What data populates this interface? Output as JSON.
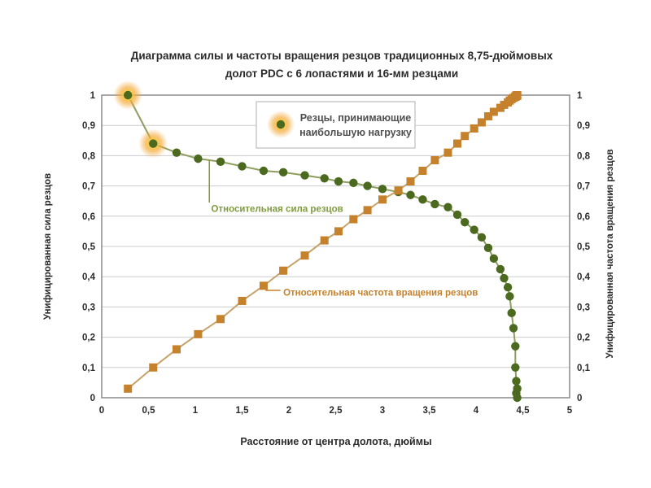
{
  "page": {
    "background": "#ffffff"
  },
  "chart_data": {
    "type": "line",
    "title_lines": [
      "Диаграмма силы и частоты вращения резцов традиционных 8,75-дюймовых",
      "долот PDC с 6 лопастями и 16-мм резцами"
    ],
    "xlabel": "Расстояние от центра долота, дюймы",
    "ylabel_left": "Унифицированная сила резцов",
    "ylabel_right": "Унифицированная частота вращения резцов",
    "xlim": [
      0,
      5
    ],
    "ylim": [
      0,
      1
    ],
    "xtick_values": [
      0,
      0.5,
      1,
      1.5,
      2,
      2.5,
      3,
      3.5,
      4,
      4.5,
      5
    ],
    "xtick_labels": [
      "0",
      "0,5",
      "1",
      "1,5",
      "2",
      "2,5",
      "3",
      "3,5",
      "4",
      "4,5",
      "5"
    ],
    "ytick_values": [
      0,
      0.1,
      0.2,
      0.3,
      0.4,
      0.5,
      0.6,
      0.7,
      0.8,
      0.9,
      1
    ],
    "ytick_labels": [
      "0",
      "0,1",
      "0,2",
      "0,3",
      "0,4",
      "0,5",
      "0,6",
      "0,7",
      "0,8",
      "0,9",
      "1"
    ],
    "grid": "horizontal",
    "grid_color": "#cbcbcb",
    "border_color": "#8a8a8a",
    "legend": {
      "text_lines": [
        "Резцы, принимающие",
        "наибольшую нагрузку"
      ],
      "marker": "highlighted-cutter-dot",
      "position": "top-center-inside",
      "border_color": "#bcbcbc"
    },
    "highlight_glow_color": "#f5a82e",
    "x": [
      0.28,
      0.55,
      0.8,
      1.03,
      1.27,
      1.5,
      1.73,
      1.94,
      2.17,
      2.38,
      2.53,
      2.69,
      2.84,
      3.0,
      3.17,
      3.3,
      3.43,
      3.56,
      3.7,
      3.8,
      3.88,
      3.98,
      4.06,
      4.13,
      4.19,
      4.26,
      4.3,
      4.34,
      4.36,
      4.38,
      4.4,
      4.42,
      4.42,
      4.43,
      4.44,
      4.43,
      4.44
    ],
    "series": [
      {
        "name": "Относительная сила резцов",
        "axis": "left",
        "marker": "circle",
        "marker_color": "#4b6a1f",
        "line_color": "#8e9e60",
        "highlighted_points": [
          0,
          1
        ],
        "values": [
          1.0,
          0.84,
          0.81,
          0.79,
          0.78,
          0.765,
          0.75,
          0.745,
          0.735,
          0.725,
          0.715,
          0.71,
          0.7,
          0.69,
          0.68,
          0.67,
          0.655,
          0.64,
          0.63,
          0.605,
          0.58,
          0.555,
          0.53,
          0.495,
          0.46,
          0.425,
          0.395,
          0.365,
          0.335,
          0.28,
          0.23,
          0.17,
          0.1,
          0.055,
          0.03,
          0.015,
          0.0
        ]
      },
      {
        "name": "Относительная частота вращения резцов",
        "axis": "right",
        "marker": "square",
        "marker_color": "#c5812c",
        "line_color": "#c6a36a",
        "highlighted_points": [],
        "values": [
          0.03,
          0.1,
          0.16,
          0.21,
          0.26,
          0.32,
          0.37,
          0.42,
          0.47,
          0.52,
          0.55,
          0.59,
          0.62,
          0.655,
          0.685,
          0.715,
          0.75,
          0.785,
          0.81,
          0.84,
          0.865,
          0.89,
          0.91,
          0.93,
          0.945,
          0.958,
          0.968,
          0.976,
          0.982,
          0.987,
          0.991,
          0.994,
          0.996,
          0.997,
          0.998,
          0.999,
          1.0
        ]
      }
    ],
    "annotations": [
      {
        "text": "Относительная сила резцов",
        "color": "#7f9b3e",
        "text_x": 1.17,
        "text_y": 0.625,
        "leader": {
          "x1": 1.15,
          "y1": 0.787,
          "x2": 1.15,
          "y2": 0.645
        }
      },
      {
        "text": "Относительная частота вращения резцов",
        "color": "#c5812c",
        "text_x": 1.94,
        "text_y": 0.348,
        "leader": {
          "x1": 1.75,
          "y1": 0.355,
          "x2": 1.91,
          "y2": 0.355
        }
      }
    ]
  }
}
